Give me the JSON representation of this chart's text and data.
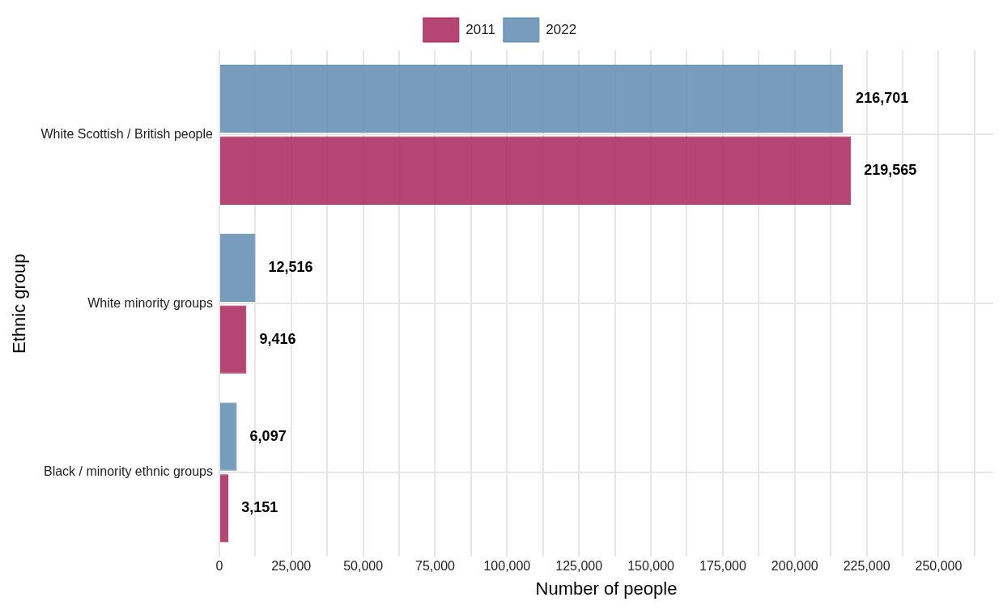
{
  "chart_data": {
    "type": "bar",
    "orientation": "horizontal",
    "categories": [
      "White Scottish / British people",
      "White minority groups",
      "Black / minority ethnic groups"
    ],
    "series": [
      {
        "name": "2011",
        "color": "#a8245a",
        "values": [
          219565,
          9416,
          3151
        ],
        "value_labels": [
          "219,565",
          "9,416",
          "3,151"
        ]
      },
      {
        "name": "2022",
        "color": "#5f8bb0",
        "values": [
          216701,
          12516,
          6097
        ],
        "value_labels": [
          "216,701",
          "12,516",
          "6,097"
        ]
      }
    ],
    "xlabel": "Number of people",
    "ylabel": "Ethnic group",
    "xlim": [
      0,
      269000
    ],
    "xticks": [
      0,
      {
        "value": 12500,
        "label": null
      },
      {
        "value": 25000,
        "label": "25,000"
      },
      {
        "value": 37500,
        "label": null
      },
      {
        "value": 50000,
        "label": "50,000"
      },
      {
        "value": 62500,
        "label": null
      },
      {
        "value": 75000,
        "label": "75,000"
      },
      {
        "value": 87500,
        "label": null
      },
      {
        "value": 100000,
        "label": "100,000"
      },
      {
        "value": 112500,
        "label": null
      },
      {
        "value": 125000,
        "label": "125,000"
      },
      {
        "value": 137500,
        "label": null
      },
      {
        "value": 150000,
        "label": "150,000"
      },
      {
        "value": 162500,
        "label": null
      },
      {
        "value": 175000,
        "label": "175,000"
      },
      {
        "value": 187500,
        "label": null
      },
      {
        "value": 200000,
        "label": "200,000"
      },
      {
        "value": 212500,
        "label": null
      },
      {
        "value": 225000,
        "label": "225,000"
      },
      {
        "value": 237500,
        "label": null
      },
      {
        "value": 250000,
        "label": "250,000"
      },
      {
        "value": 262500,
        "label": null
      }
    ],
    "grid": true,
    "legend": "top"
  }
}
